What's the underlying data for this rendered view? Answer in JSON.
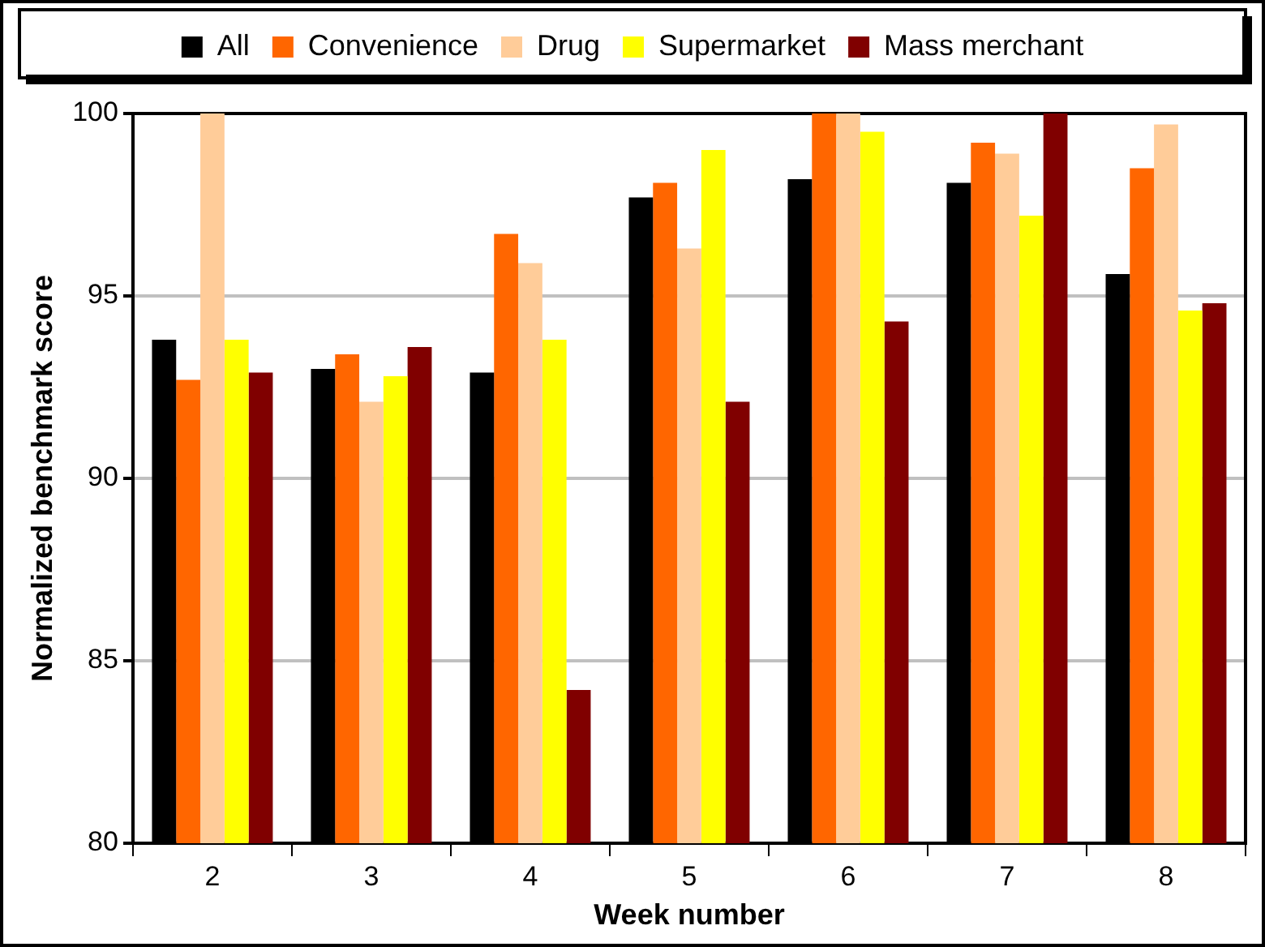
{
  "chart_data": {
    "type": "bar",
    "xlabel": "Week number",
    "ylabel": "Normalized benchmark score",
    "categories": [
      "2",
      "3",
      "4",
      "5",
      "6",
      "7",
      "8"
    ],
    "series": [
      {
        "name": "All",
        "color": "#000000",
        "values": [
          93.8,
          93.0,
          92.9,
          97.7,
          98.2,
          98.1,
          95.6
        ]
      },
      {
        "name": "Convenience",
        "color": "#ff6600",
        "values": [
          92.7,
          93.4,
          96.7,
          98.1,
          100,
          99.2,
          98.5
        ]
      },
      {
        "name": "Drug",
        "color": "#ffcc99",
        "values": [
          100,
          92.1,
          95.9,
          96.3,
          100,
          98.9,
          99.7
        ]
      },
      {
        "name": "Supermarket",
        "color": "#ffff00",
        "values": [
          93.8,
          92.8,
          93.8,
          99.0,
          99.5,
          97.2,
          94.6
        ]
      },
      {
        "name": "Mass merchant",
        "color": "#800000",
        "values": [
          92.9,
          93.6,
          84.2,
          92.1,
          94.3,
          100,
          94.8
        ]
      }
    ],
    "ylim": [
      80,
      100
    ],
    "yticks": [
      80,
      85,
      90,
      95,
      100
    ],
    "grid": "y",
    "legend": "top"
  }
}
